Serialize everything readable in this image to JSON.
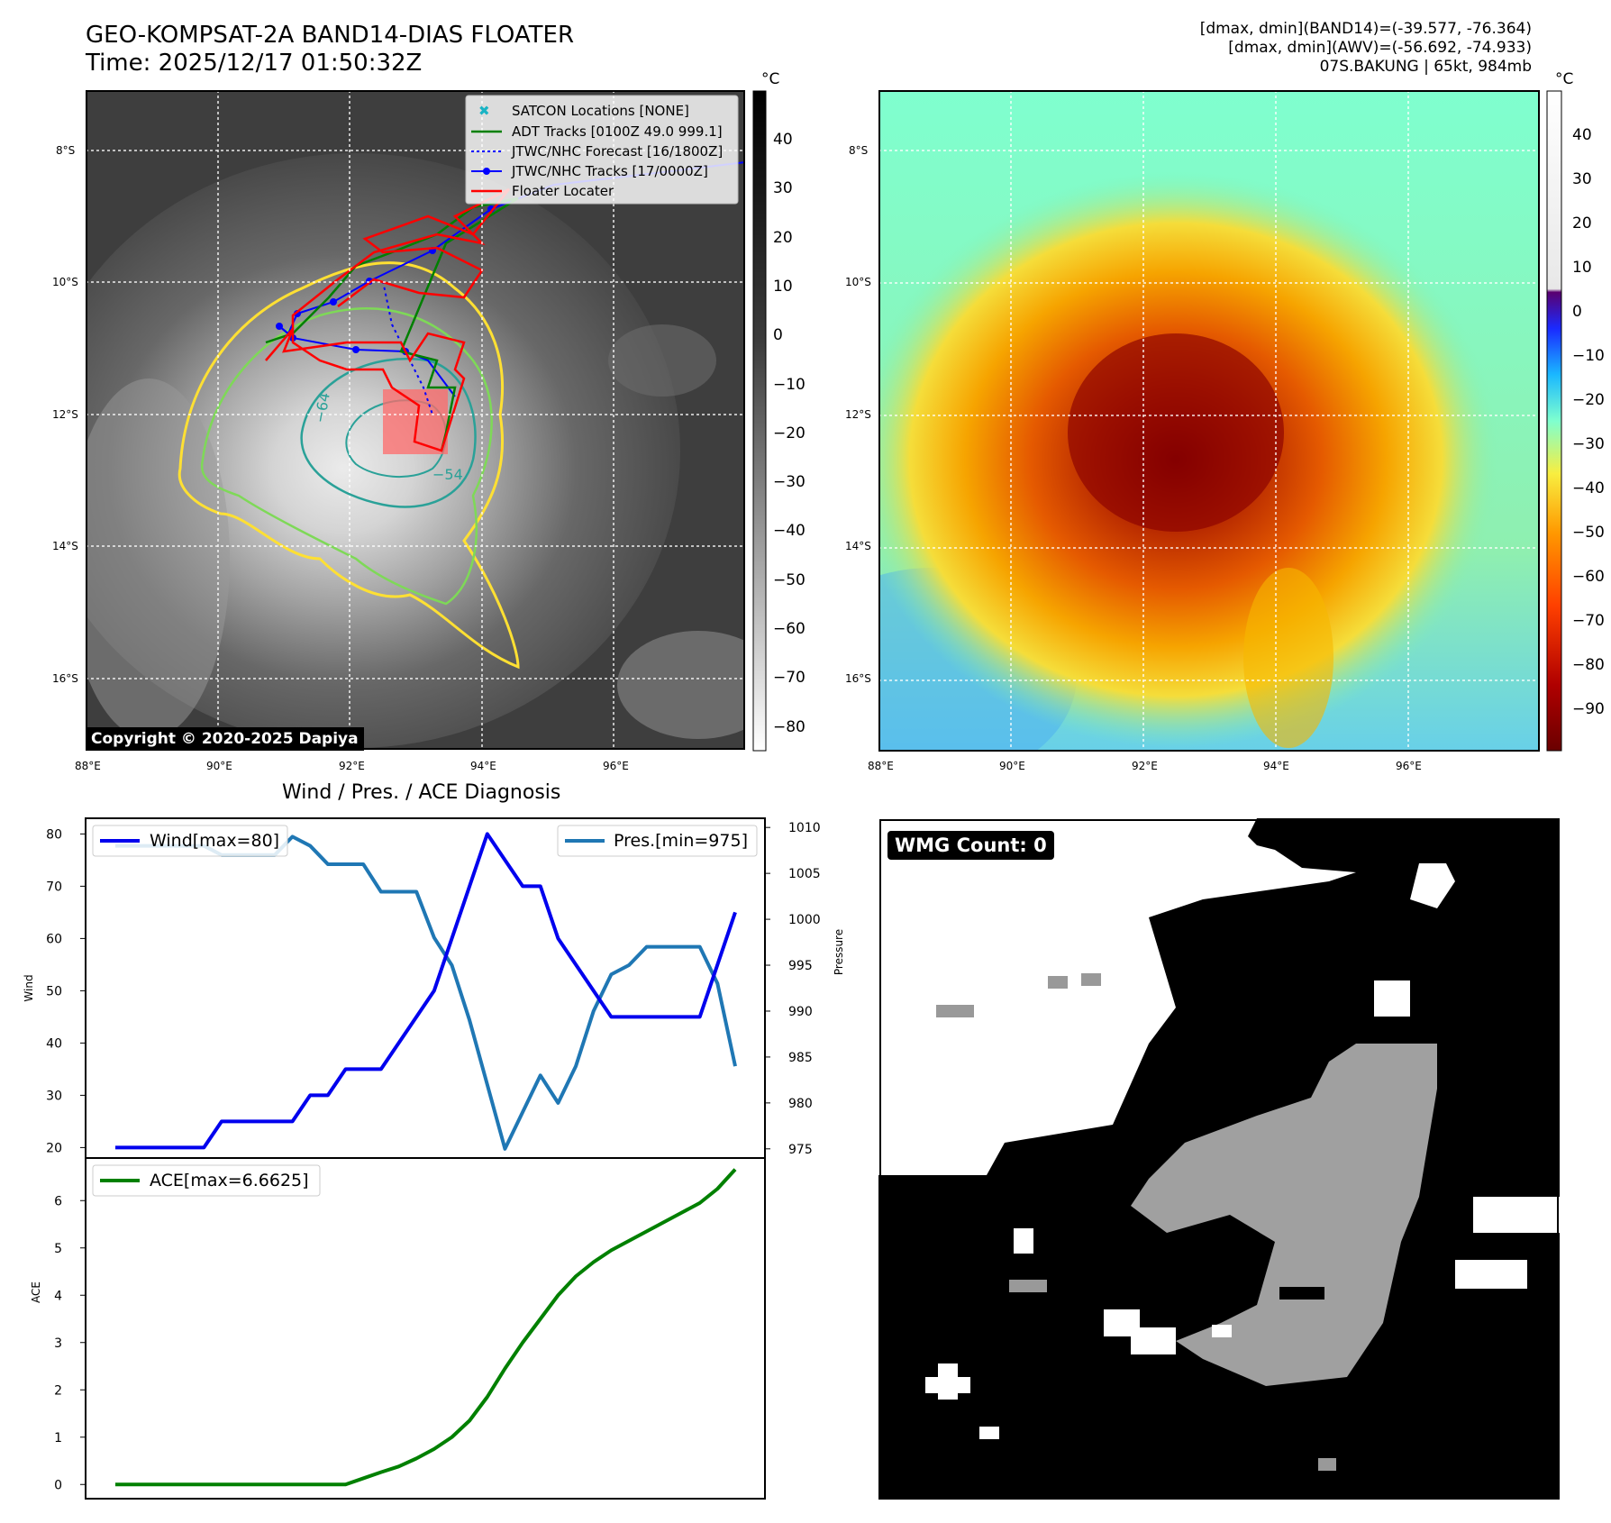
{
  "header": {
    "title_line1": "GEO-KOMPSAT-2A BAND14-DIAS FLOATER",
    "title_line2": "Time: 2025/12/17 01:50:32Z",
    "info_line1": "[dmax, dmin](BAND14)=(-39.577, -76.364)",
    "info_line2": "[dmax, dmin](AWV)=(-56.692, -74.933)",
    "info_line3": "07S.BAKUNG | 65kt, 984mb"
  },
  "map_axes": {
    "lat_labels": [
      "8°S",
      "10°S",
      "12°S",
      "14°S",
      "16°S"
    ],
    "lon_labels": [
      "88°E",
      "90°E",
      "92°E",
      "94°E",
      "96°E"
    ]
  },
  "colorbar_left": {
    "unit": "°C",
    "ticks": [
      "40",
      "30",
      "20",
      "10",
      "0",
      "−10",
      "−20",
      "−30",
      "−40",
      "−50",
      "−60",
      "−70",
      "−80"
    ]
  },
  "colorbar_right": {
    "unit": "°C",
    "ticks": [
      "40",
      "30",
      "20",
      "10",
      "0",
      "−10",
      "−20",
      "−30",
      "−40",
      "−50",
      "−60",
      "−70",
      "−80",
      "−90"
    ]
  },
  "legend": {
    "satcon": "SATCON Locations [NONE]",
    "adt": "ADT Tracks [0100Z 49.0 999.1]",
    "forecast": "JTWC/NHC Forecast [16/1800Z]",
    "tracks": "JTWC/NHC Tracks [17/0000Z]",
    "locater": "Floater Locater"
  },
  "contour_labels": [
    "−64",
    "−54"
  ],
  "copyright": "Copyright © 2020-2025 Dapiya",
  "wmg": {
    "label": "WMG Count: 0"
  },
  "colors": {
    "wind": "#0000ee",
    "pressure": "#1f77b4",
    "ace": "#008000",
    "adt": "#008000",
    "tracks": "#0000ff",
    "locater": "#ff0000",
    "contour_yellow": "#ffe033",
    "contour_green": "#7ed957",
    "contour_teal": "#2aa198"
  },
  "chart_data": [
    {
      "type": "line",
      "title": "Wind / Pres. / ACE Diagnosis",
      "ylabel": "Wind",
      "y2label": "Pressure",
      "ylim": [
        18,
        83
      ],
      "y2lim": [
        974,
        1011
      ],
      "yticks": [
        20,
        30,
        40,
        50,
        60,
        70,
        80
      ],
      "y2ticks": [
        975,
        980,
        985,
        990,
        995,
        1000,
        1005,
        1010
      ],
      "series": [
        {
          "name": "Wind[max=80]",
          "axis": "left",
          "values": [
            20,
            20,
            20,
            20,
            20,
            20,
            25,
            25,
            25,
            25,
            25,
            30,
            30,
            35,
            35,
            35,
            40,
            45,
            50,
            60,
            70,
            80,
            75,
            70,
            70,
            60,
            55,
            50,
            45,
            45,
            45,
            45,
            45,
            45,
            55,
            65
          ]
        },
        {
          "name": "Pres.[min=975]",
          "axis": "right",
          "values": [
            1008,
            1008,
            1008,
            1008,
            1008,
            1008,
            1007,
            1007,
            1007,
            1007,
            1009,
            1008,
            1006,
            1006,
            1006,
            1003,
            1003,
            1003,
            998,
            995,
            989,
            982,
            975,
            979,
            983,
            980,
            984,
            990,
            994,
            995,
            997,
            997,
            997,
            997,
            993,
            984
          ]
        }
      ]
    },
    {
      "type": "line",
      "ylabel": "ACE",
      "ylim": [
        -0.3,
        6.9
      ],
      "yticks": [
        0,
        1,
        2,
        3,
        4,
        5,
        6
      ],
      "series": [
        {
          "name": "ACE[max=6.6625]",
          "values": [
            0,
            0,
            0,
            0,
            0,
            0,
            0,
            0,
            0,
            0,
            0,
            0,
            0,
            0,
            0.13,
            0.26,
            0.38,
            0.55,
            0.75,
            1.0,
            1.35,
            1.85,
            2.45,
            3.0,
            3.5,
            4.0,
            4.4,
            4.7,
            4.95,
            5.15,
            5.35,
            5.55,
            5.75,
            5.95,
            6.25,
            6.66
          ]
        }
      ]
    }
  ]
}
